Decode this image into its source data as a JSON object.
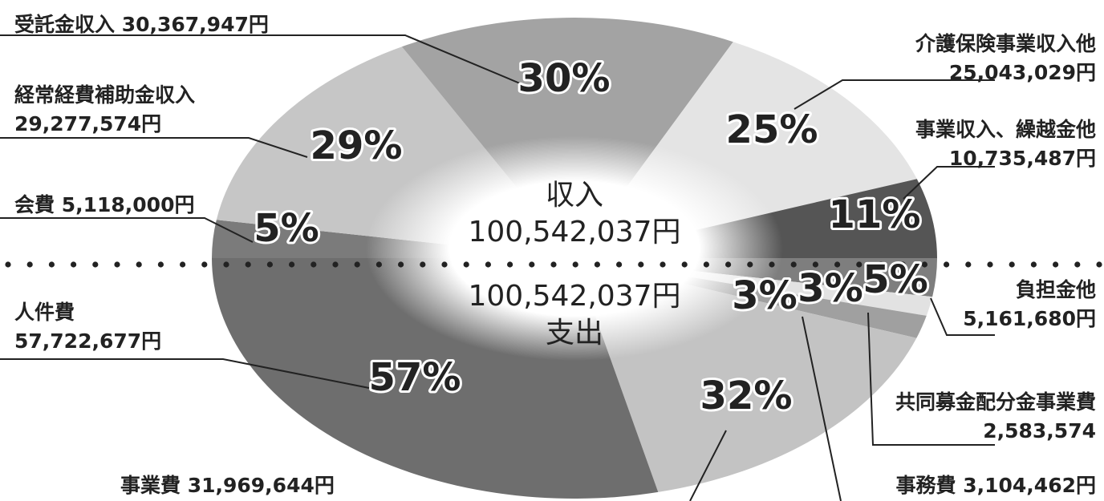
{
  "chart_data": [
    {
      "type": "pie",
      "variant": "half-donut (top half)",
      "center_label": "収入",
      "center_value": "100,542,037円",
      "slices": [
        {
          "key": "itaku",
          "label": "受託金収入 30,367,947円",
          "name": "受託金収入",
          "amount": 30367947,
          "percent": 30,
          "percent_label": "30%",
          "color": "#a3a3a3"
        },
        {
          "key": "kaigo",
          "label_lines": [
            "介護保険事業収入他",
            "25,043,029円"
          ],
          "name": "介護保険事業収入他",
          "amount": 25043029,
          "percent": 25,
          "percent_label": "25%",
          "color": "#e4e4e4"
        },
        {
          "key": "jigyo",
          "label_lines": [
            "事業収入、繰越金他",
            "10,735,487円"
          ],
          "name": "事業収入、繰越金他",
          "amount": 10735487,
          "percent": 11,
          "percent_label": "11%",
          "color": "#555555"
        },
        {
          "key": "kaihi",
          "label": "会費 5,118,000円",
          "name": "会費",
          "amount": 5118000,
          "percent": 5,
          "percent_label": "5%",
          "color": "#7b7b7b"
        },
        {
          "key": "hojo",
          "label_lines": [
            "経常経費補助金収入",
            "29,277,574円"
          ],
          "name": "経常経費補助金収入",
          "amount": 29277574,
          "percent": 29,
          "percent_label": "29%",
          "color": "#c6c6c6"
        }
      ]
    },
    {
      "type": "pie",
      "variant": "half-donut (bottom half)",
      "center_label": "支出",
      "center_value": "100,542,037円",
      "slices": [
        {
          "key": "jinken",
          "label_lines": [
            "人件費",
            "57,722,677円"
          ],
          "name": "人件費",
          "amount": 57722677,
          "percent": 57,
          "percent_label": "57%",
          "color": "#6e6e6e"
        },
        {
          "key": "jigyohi",
          "label": "事業費 31,969,644円",
          "name": "事業費",
          "amount": 31969644,
          "percent": 32,
          "percent_label": "32%",
          "color": "#c3c3c3"
        },
        {
          "key": "jimu",
          "label": "事務費 3,104,462円",
          "name": "事務費",
          "amount": 3104462,
          "percent": 3,
          "percent_label": "3%",
          "color": "#a0a0a0"
        },
        {
          "key": "kyodo",
          "label_lines": [
            "共同募金配分金事業費",
            "2,583,574"
          ],
          "name": "共同募金配分金事業費",
          "amount": 2583574,
          "percent": 3,
          "percent_label": "3%",
          "color": "#e2e2e2"
        },
        {
          "key": "futan",
          "label_lines": [
            "負担金他",
            "5,161,680円"
          ],
          "name": "負担金他",
          "amount": 5161680,
          "percent": 5,
          "percent_label": "5%",
          "color": "#7e7e7e"
        }
      ]
    }
  ]
}
